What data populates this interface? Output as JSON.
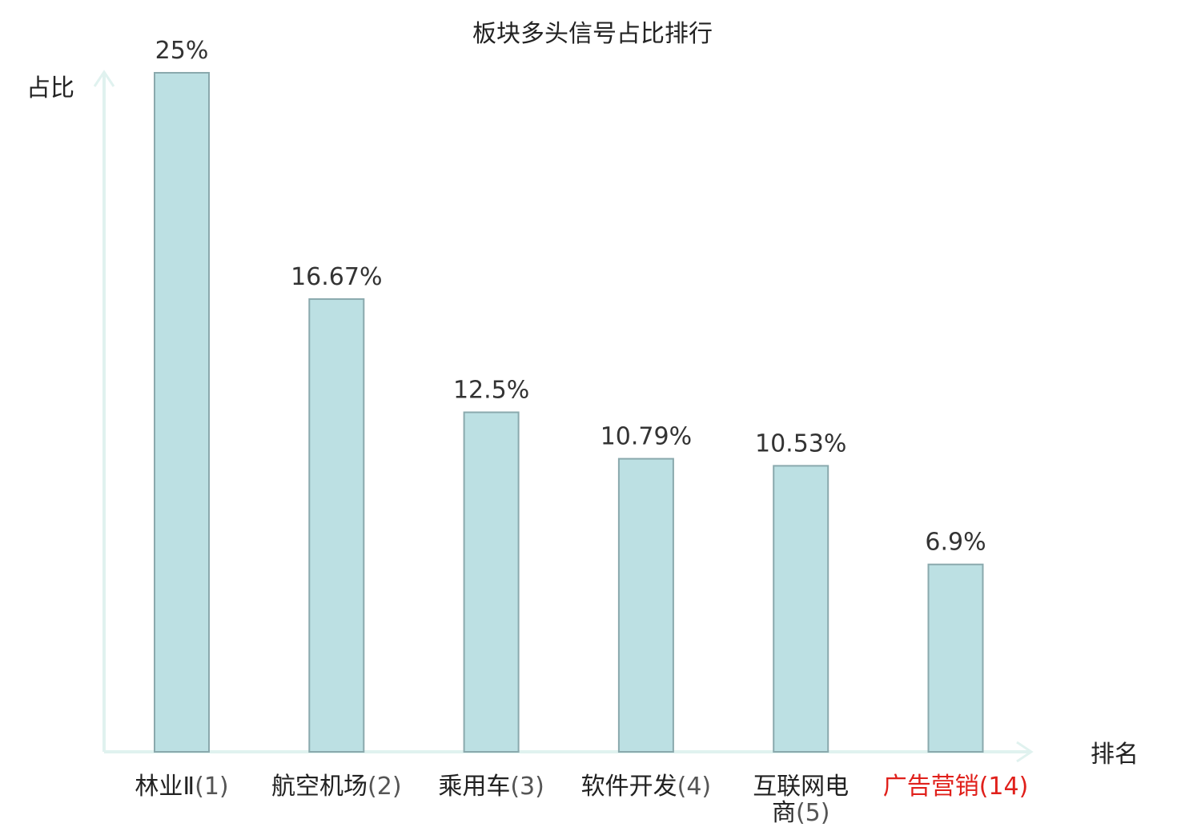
{
  "chart_data": {
    "type": "bar",
    "title": "板块多头信号占比排行",
    "ylabel": "占比",
    "xlabel": "排名",
    "categories": [
      {
        "name": "林业Ⅱ",
        "rank": "(1)",
        "highlight": false
      },
      {
        "name": "航空机场",
        "rank": "(2)",
        "highlight": false
      },
      {
        "name": "乘用车",
        "rank": "(3)",
        "highlight": false
      },
      {
        "name": "软件开发",
        "rank": "(4)",
        "highlight": false
      },
      {
        "name": "互联网电",
        "name_line2": "商",
        "rank": "(5)",
        "highlight": false
      },
      {
        "name": "广告营销",
        "rank": "(14)",
        "highlight": true
      }
    ],
    "values": [
      25,
      16.67,
      12.5,
      10.79,
      10.53,
      6.9
    ],
    "value_labels": [
      "25%",
      "16.67%",
      "12.5%",
      "10.79%",
      "10.53%",
      "6.9%"
    ],
    "ylim": [
      0,
      25
    ],
    "grid": false,
    "colors": {
      "bar_fill": "#bce0e3",
      "bar_stroke": "#8aa9ad",
      "axis": "#e0f2ef",
      "text": "#222222",
      "rank_text": "#555555",
      "value_text": "#333333",
      "highlight": "#e0201b"
    }
  }
}
